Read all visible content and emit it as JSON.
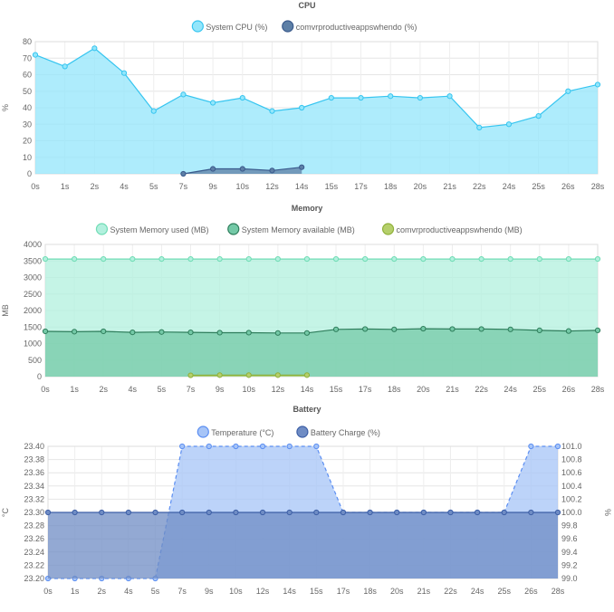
{
  "chart_data": [
    {
      "type": "area",
      "title": "CPU",
      "xlabel": "",
      "ylabel": "%",
      "ylim": [
        0,
        80
      ],
      "yticks": [
        0,
        10,
        20,
        30,
        40,
        50,
        60,
        70,
        80
      ],
      "grid": true,
      "legend_position": "top",
      "categories": [
        "0s",
        "1s",
        "2s",
        "4s",
        "5s",
        "7s",
        "9s",
        "10s",
        "12s",
        "14s",
        "15s",
        "17s",
        "18s",
        "20s",
        "21s",
        "22s",
        "24s",
        "25s",
        "26s",
        "28s"
      ],
      "series": [
        {
          "name": "System CPU (%)",
          "color": "#36c5f0",
          "fill": "#93e6fb",
          "values": [
            72,
            65,
            76,
            61,
            38,
            48,
            43,
            46,
            38,
            40,
            46,
            46,
            47,
            46,
            47,
            28,
            30,
            35,
            50,
            54
          ]
        },
        {
          "name": "comvrproductiveappswhendo (%)",
          "color": "#3a5a8c",
          "fill": "#5d7fa6",
          "values": [
            null,
            null,
            null,
            null,
            null,
            0,
            3,
            3,
            2,
            4,
            null,
            null,
            null,
            null,
            null,
            null,
            null,
            null,
            null,
            null
          ]
        }
      ]
    },
    {
      "type": "area",
      "title": "Memory",
      "xlabel": "",
      "ylabel": "MB",
      "ylim": [
        0,
        4000
      ],
      "yticks": [
        0,
        500,
        1000,
        1500,
        2000,
        2500,
        3000,
        3500,
        4000
      ],
      "grid": true,
      "legend_position": "top",
      "categories": [
        "0s",
        "1s",
        "2s",
        "4s",
        "5s",
        "7s",
        "9s",
        "10s",
        "12s",
        "14s",
        "15s",
        "17s",
        "18s",
        "20s",
        "21s",
        "22s",
        "24s",
        "25s",
        "26s",
        "28s"
      ],
      "series": [
        {
          "name": "System Memory used (MB)",
          "color": "#6fdcb4",
          "fill": "#b2f0de",
          "values": [
            3560,
            3560,
            3560,
            3560,
            3560,
            3560,
            3560,
            3560,
            3560,
            3560,
            3560,
            3560,
            3560,
            3560,
            3560,
            3560,
            3560,
            3560,
            3560,
            3560
          ]
        },
        {
          "name": "System Memory available (MB)",
          "color": "#2e7d5b",
          "fill": "#74c9a7",
          "values": [
            1370,
            1360,
            1370,
            1340,
            1350,
            1340,
            1330,
            1330,
            1320,
            1320,
            1430,
            1440,
            1430,
            1450,
            1440,
            1440,
            1430,
            1400,
            1380,
            1400
          ]
        },
        {
          "name": "comvrproductiveappswhendo (MB)",
          "color": "#8fb03a",
          "fill": "#b5cf6b",
          "values": [
            null,
            null,
            null,
            null,
            null,
            40,
            45,
            45,
            45,
            45,
            null,
            null,
            null,
            null,
            null,
            null,
            null,
            null,
            null,
            null
          ]
        }
      ]
    },
    {
      "type": "area",
      "title": "Battery",
      "xlabel": "",
      "ylabel": "°C",
      "ylabel_right": "%",
      "ylim": [
        23.2,
        23.4
      ],
      "ylim_right": [
        99.0,
        101.0
      ],
      "yticks": [
        "23.20",
        "23.22",
        "23.24",
        "23.26",
        "23.28",
        "23.30",
        "23.32",
        "23.34",
        "23.36",
        "23.38",
        "23.40"
      ],
      "yticks_right": [
        "99.0",
        "99.2",
        "99.4",
        "99.6",
        "99.8",
        "100.0",
        "100.2",
        "100.4",
        "100.6",
        "100.8",
        "101.0"
      ],
      "grid": true,
      "legend_position": "top",
      "categories": [
        "0s",
        "1s",
        "2s",
        "4s",
        "5s",
        "7s",
        "9s",
        "10s",
        "12s",
        "14s",
        "15s",
        "17s",
        "18s",
        "20s",
        "21s",
        "22s",
        "24s",
        "25s",
        "26s",
        "28s"
      ],
      "series": [
        {
          "name": "Temperature (°C)",
          "color": "#5b8ef2",
          "fill": "#a6c4f7",
          "axis": "left",
          "values": [
            23.2,
            23.2,
            23.2,
            23.2,
            23.2,
            23.4,
            23.4,
            23.4,
            23.4,
            23.4,
            23.4,
            23.3,
            23.3,
            23.3,
            23.3,
            23.3,
            23.3,
            23.3,
            23.4,
            23.4
          ]
        },
        {
          "name": "Battery Charge (%)",
          "color": "#3d5fa6",
          "fill": "#6f8cc4",
          "axis": "right",
          "values": [
            100,
            100,
            100,
            100,
            100,
            100,
            100,
            100,
            100,
            100,
            100,
            100,
            100,
            100,
            100,
            100,
            100,
            100,
            100,
            100
          ]
        }
      ]
    }
  ]
}
